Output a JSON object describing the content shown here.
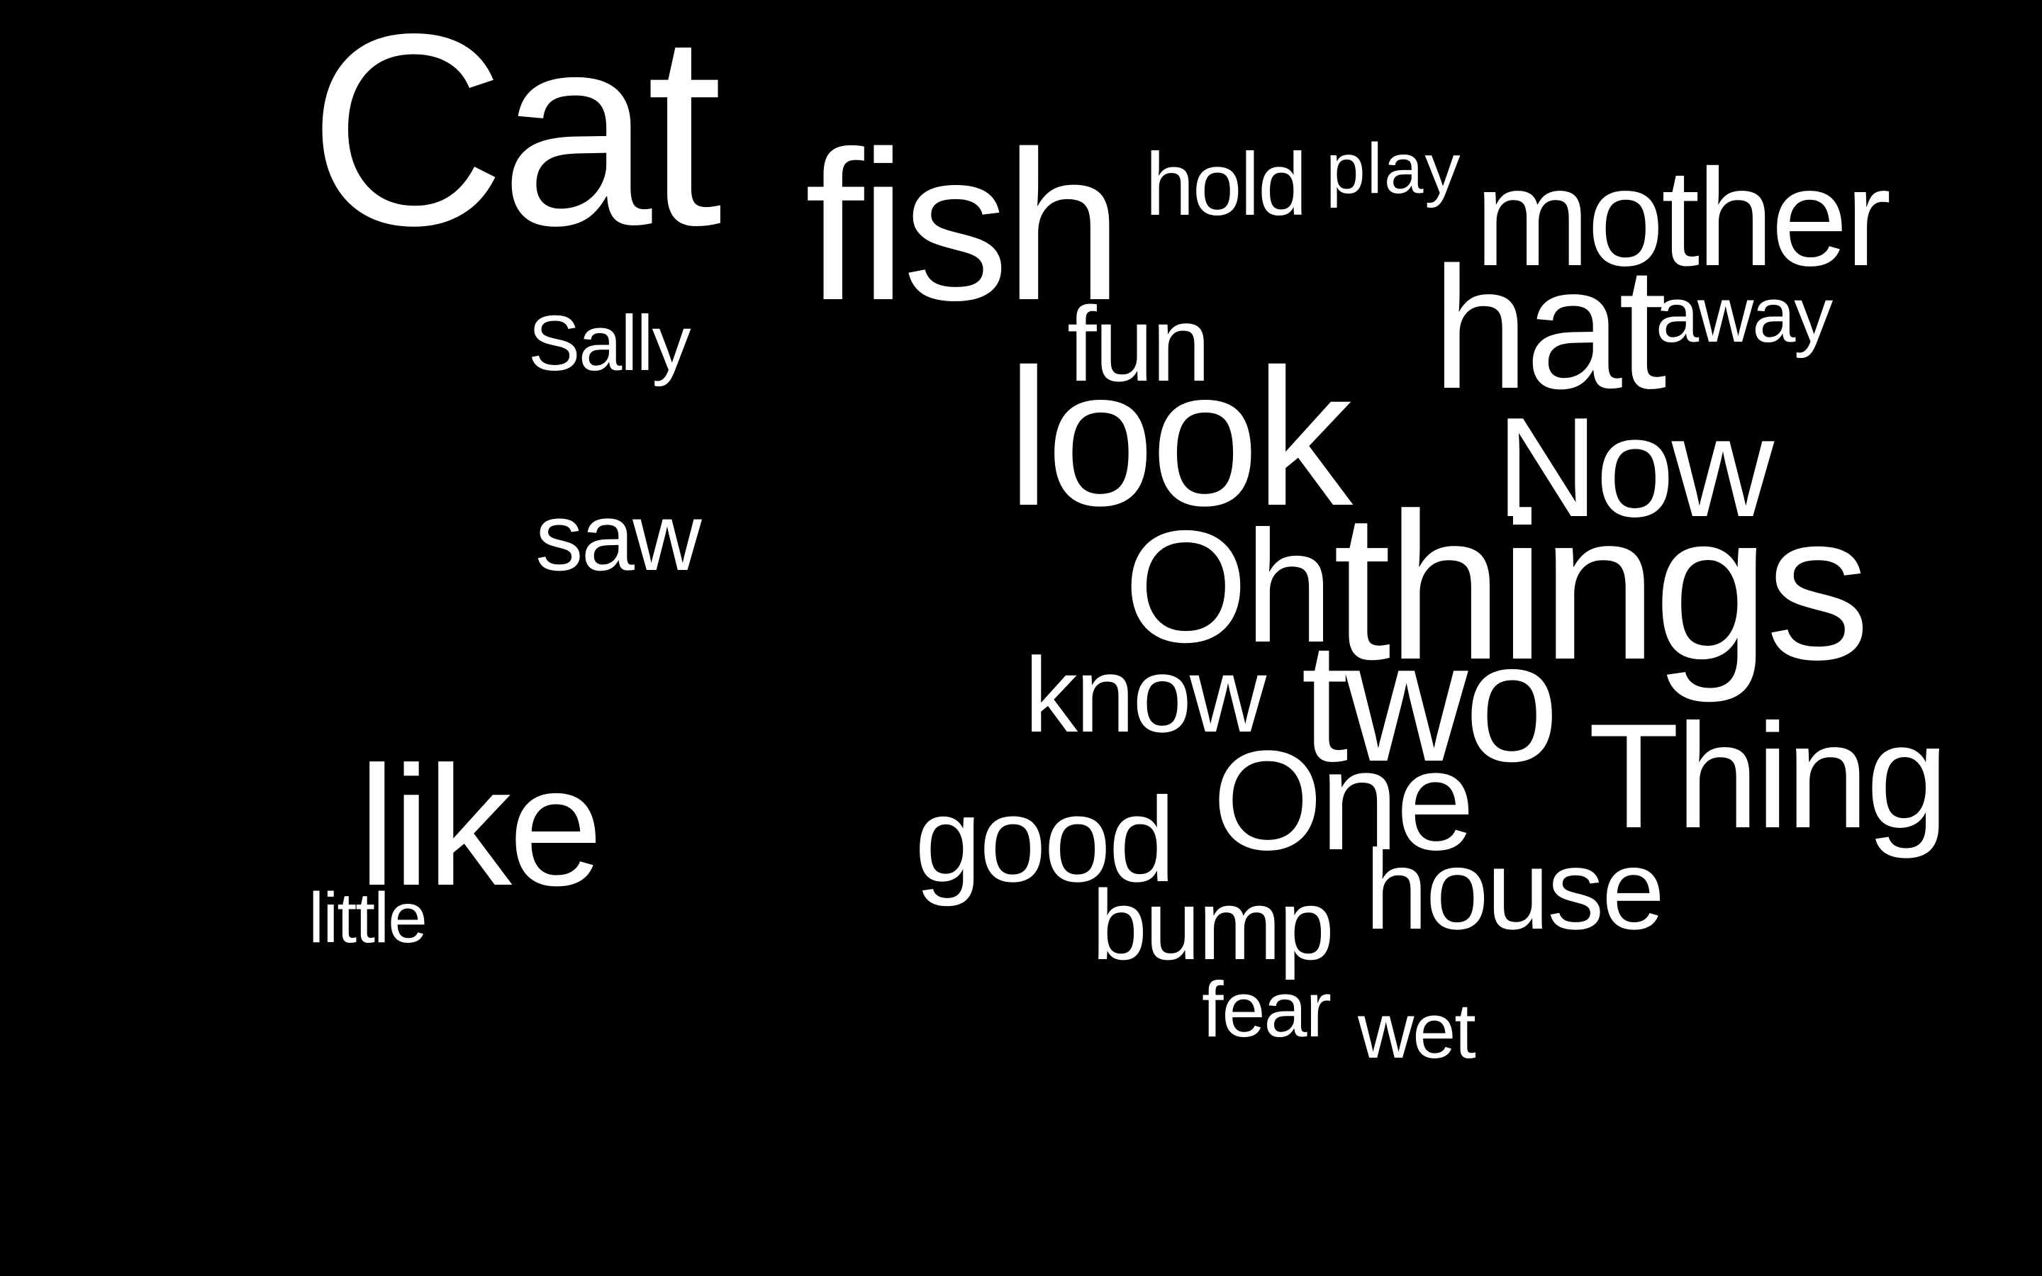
{
  "background_color": "#000000",
  "text_color": "#ffffff",
  "words": {
    "cat": "Cat",
    "fish": "fish",
    "hold": "hold",
    "play": "play",
    "mother": "mother",
    "hat": "hat",
    "away": "away",
    "sally": "Sally",
    "fun": "fun",
    "look": "look",
    "now": "Now",
    "saw": "saw",
    "oh": "Oh",
    "things": "things",
    "know": "know",
    "two": "two",
    "thing": "Thing",
    "one": "One",
    "like": "like",
    "good": "good",
    "house": "house",
    "little": "little",
    "bump": "bump",
    "fear": "fear",
    "wet": "wet"
  }
}
